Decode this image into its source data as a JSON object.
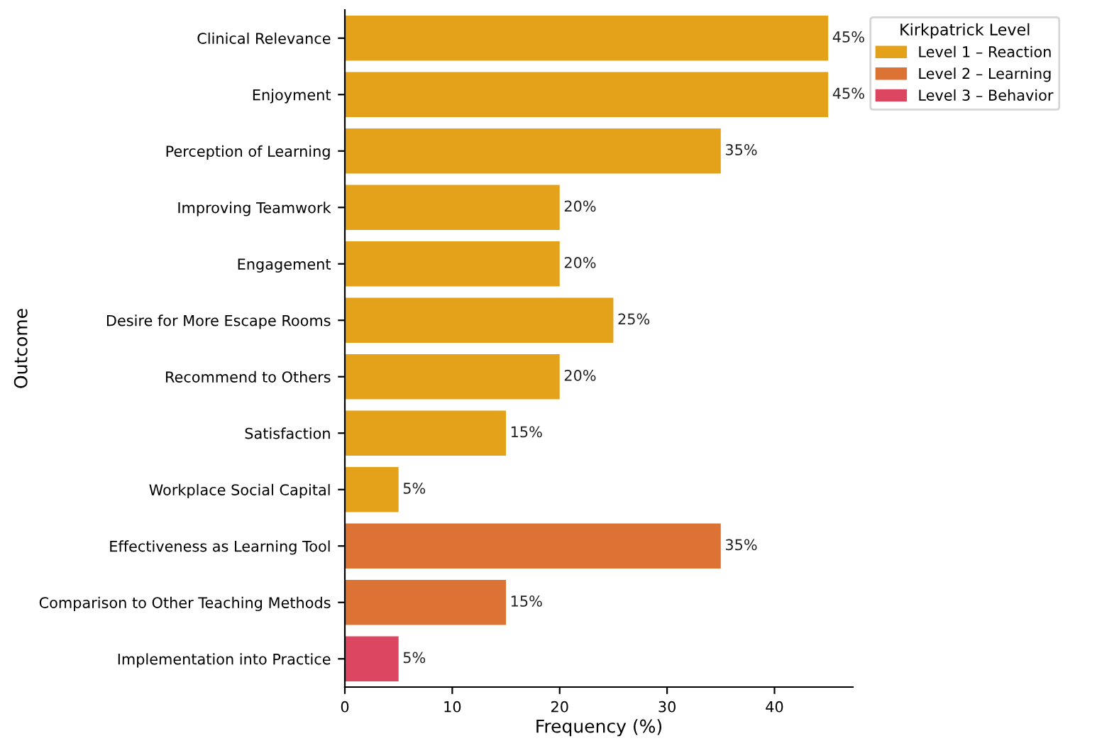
{
  "chart_data": {
    "type": "bar",
    "orientation": "horizontal",
    "xlabel": "Frequency (%)",
    "ylabel": "Outcome",
    "legend_title": "Kirkpatrick Level",
    "legend": "top right",
    "grid": false,
    "categories": [
      "Clinical Relevance",
      "Enjoyment",
      "Perception of Learning",
      "Improving Teamwork",
      "Engagement",
      "Desire for More Escape Rooms",
      "Recommend to Others",
      "Satisfaction",
      "Workplace Social Capital",
      "Effectiveness as Learning Tool",
      "Comparison to Other Teaching Methods",
      "Implementation into Practice"
    ],
    "xlim": [
      0,
      47.3
    ],
    "xticks": [
      0,
      10,
      20,
      30,
      40
    ],
    "series": [
      {
        "name": "Level 1 – Reaction",
        "color": "#e3a21a",
        "values": [
          45,
          45,
          35,
          20,
          20,
          25,
          20,
          15,
          5,
          null,
          null,
          null
        ],
        "value_labels": [
          "45%",
          "45%",
          "35%",
          "20%",
          "20%",
          "25%",
          "20%",
          "15%",
          "5%",
          null,
          null,
          null
        ]
      },
      {
        "name": "Level 2 – Learning",
        "color": "#dd7235",
        "values": [
          null,
          null,
          null,
          null,
          null,
          null,
          null,
          null,
          null,
          35,
          15,
          null
        ],
        "value_labels": [
          null,
          null,
          null,
          null,
          null,
          null,
          null,
          null,
          null,
          "35%",
          "15%",
          null
        ]
      },
      {
        "name": "Level 3 – Behavior",
        "color": "#dc4661",
        "values": [
          null,
          null,
          null,
          null,
          null,
          null,
          null,
          null,
          null,
          null,
          null,
          5
        ],
        "value_labels": [
          null,
          null,
          null,
          null,
          null,
          null,
          null,
          null,
          null,
          null,
          null,
          "5%"
        ]
      }
    ]
  }
}
